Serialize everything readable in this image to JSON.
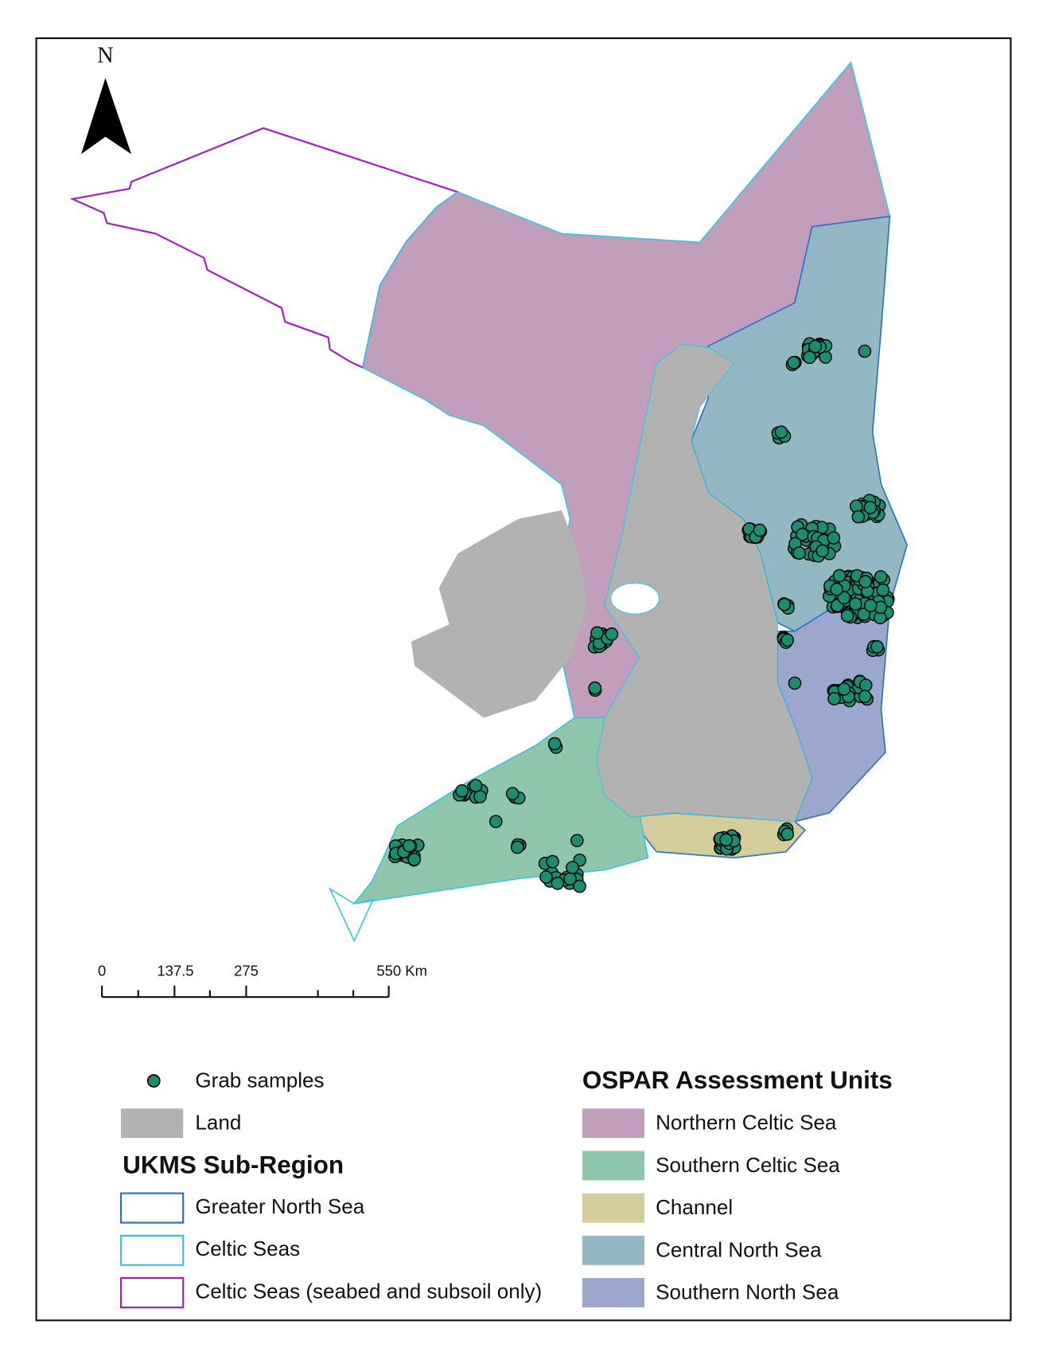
{
  "north_arrow": {
    "label": "N"
  },
  "scale_bar": {
    "labels": [
      "0",
      "137.5",
      "275",
      "550 Km"
    ]
  },
  "legend": {
    "items": [
      {
        "label": "Grab samples"
      },
      {
        "label": "Land"
      }
    ],
    "ukms": {
      "title": "UKMS Sub-Region",
      "items": [
        {
          "label": "Greater North Sea"
        },
        {
          "label": "Celtic Seas"
        },
        {
          "label": "Celtic Seas (seabed and subsoil only)"
        }
      ]
    },
    "ospar": {
      "title": "OSPAR Assessment Units",
      "items": [
        {
          "label": "Northern Celtic Sea"
        },
        {
          "label": "Southern Celtic Sea"
        },
        {
          "label": "Channel"
        },
        {
          "label": "Central North Sea"
        },
        {
          "label": "Southern North Sea"
        }
      ]
    }
  }
}
